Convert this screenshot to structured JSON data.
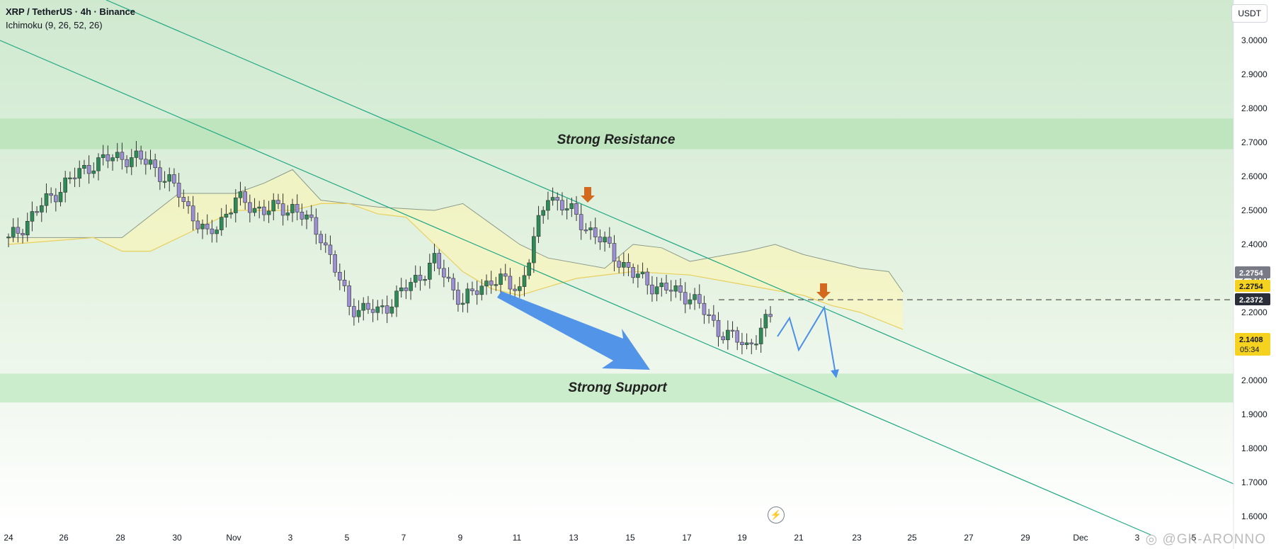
{
  "header": {
    "title": "XRP / TetherUS · 4h · Binance",
    "indicator": "Ichimoku (9, 26, 52, 26)"
  },
  "currency": "USDT",
  "watermark": "@GK-ARONNO",
  "icons": {
    "replay": "lightning-icon",
    "watermark": "logo-icon"
  },
  "colors": {
    "bull": "#2e8b57",
    "bear": "#9c8fd4",
    "resistance_zone": "#b9e3b9",
    "support_zone": "#c6ebc6",
    "channel_line": "#22a884",
    "cloud": "#fff6b0",
    "projection": "#4a8fe8",
    "arrow_marker": "#d2691e",
    "price_label": "#f5d21f"
  },
  "chart_data": {
    "type": "candlestick",
    "symbol": "XRP / TetherUS",
    "timeframe": "4h",
    "exchange": "Binance",
    "ylim": [
      1.555,
      3.1
    ],
    "x_ticks": [
      "24",
      "26",
      "28",
      "30",
      "Nov",
      "3",
      "5",
      "7",
      "9",
      "11",
      "13",
      "15",
      "17",
      "19",
      "21",
      "23",
      "25",
      "27",
      "29",
      "Dec",
      "3",
      "5"
    ],
    "y_ticks": [
      "3.0000",
      "2.9000",
      "2.8000",
      "2.7000",
      "2.6000",
      "2.5000",
      "2.4000",
      "2.3000",
      "2.2000",
      "2.1000",
      "2.0000",
      "1.9000",
      "1.8000",
      "1.7000",
      "1.6000"
    ],
    "x_range": {
      "start": 0,
      "end": 45
    },
    "candles_by_day": [
      {
        "day": 0,
        "close": 2.41
      },
      {
        "day": 1,
        "close": 2.5
      },
      {
        "day": 2,
        "close": 2.58
      },
      {
        "day": 3,
        "close": 2.64
      },
      {
        "day": 4,
        "close": 2.66
      },
      {
        "day": 5,
        "close": 2.64
      },
      {
        "day": 6,
        "close": 2.55
      },
      {
        "day": 7,
        "close": 2.42
      },
      {
        "day": 8,
        "close": 2.53
      },
      {
        "day": 9,
        "close": 2.5
      },
      {
        "day": 10,
        "close": 2.51
      },
      {
        "day": 11,
        "close": 2.43
      },
      {
        "day": 12,
        "close": 2.22
      },
      {
        "day": 13,
        "close": 2.2
      },
      {
        "day": 14,
        "close": 2.27
      },
      {
        "day": 15,
        "close": 2.35
      },
      {
        "day": 16,
        "close": 2.23
      },
      {
        "day": 17,
        "close": 2.3
      },
      {
        "day": 18,
        "close": 2.27
      },
      {
        "day": 19,
        "close": 2.55
      },
      {
        "day": 20,
        "close": 2.48
      },
      {
        "day": 21,
        "close": 2.4
      },
      {
        "day": 22,
        "close": 2.31
      },
      {
        "day": 23,
        "close": 2.27
      },
      {
        "day": 24,
        "close": 2.25
      },
      {
        "day": 25,
        "close": 2.15
      },
      {
        "day": 26,
        "close": 2.1
      },
      {
        "day": 27,
        "close": 2.2
      }
    ],
    "annotations": {
      "resistance_label": "Strong Resistance",
      "resistance_zone": [
        2.68,
        2.77
      ],
      "support_label": "Strong Support",
      "support_zone": [
        1.935,
        2.02
      ]
    },
    "price_labels": [
      {
        "value": "2.2754",
        "style": "gray"
      },
      {
        "value": "2.2754",
        "style": "yellow"
      },
      {
        "value": "2.2372",
        "style": "dark"
      },
      {
        "value": "2.1408",
        "style": "yellow",
        "countdown": "05:34"
      }
    ],
    "dashed_level": 2.2372,
    "grid": false,
    "legend": "none"
  }
}
